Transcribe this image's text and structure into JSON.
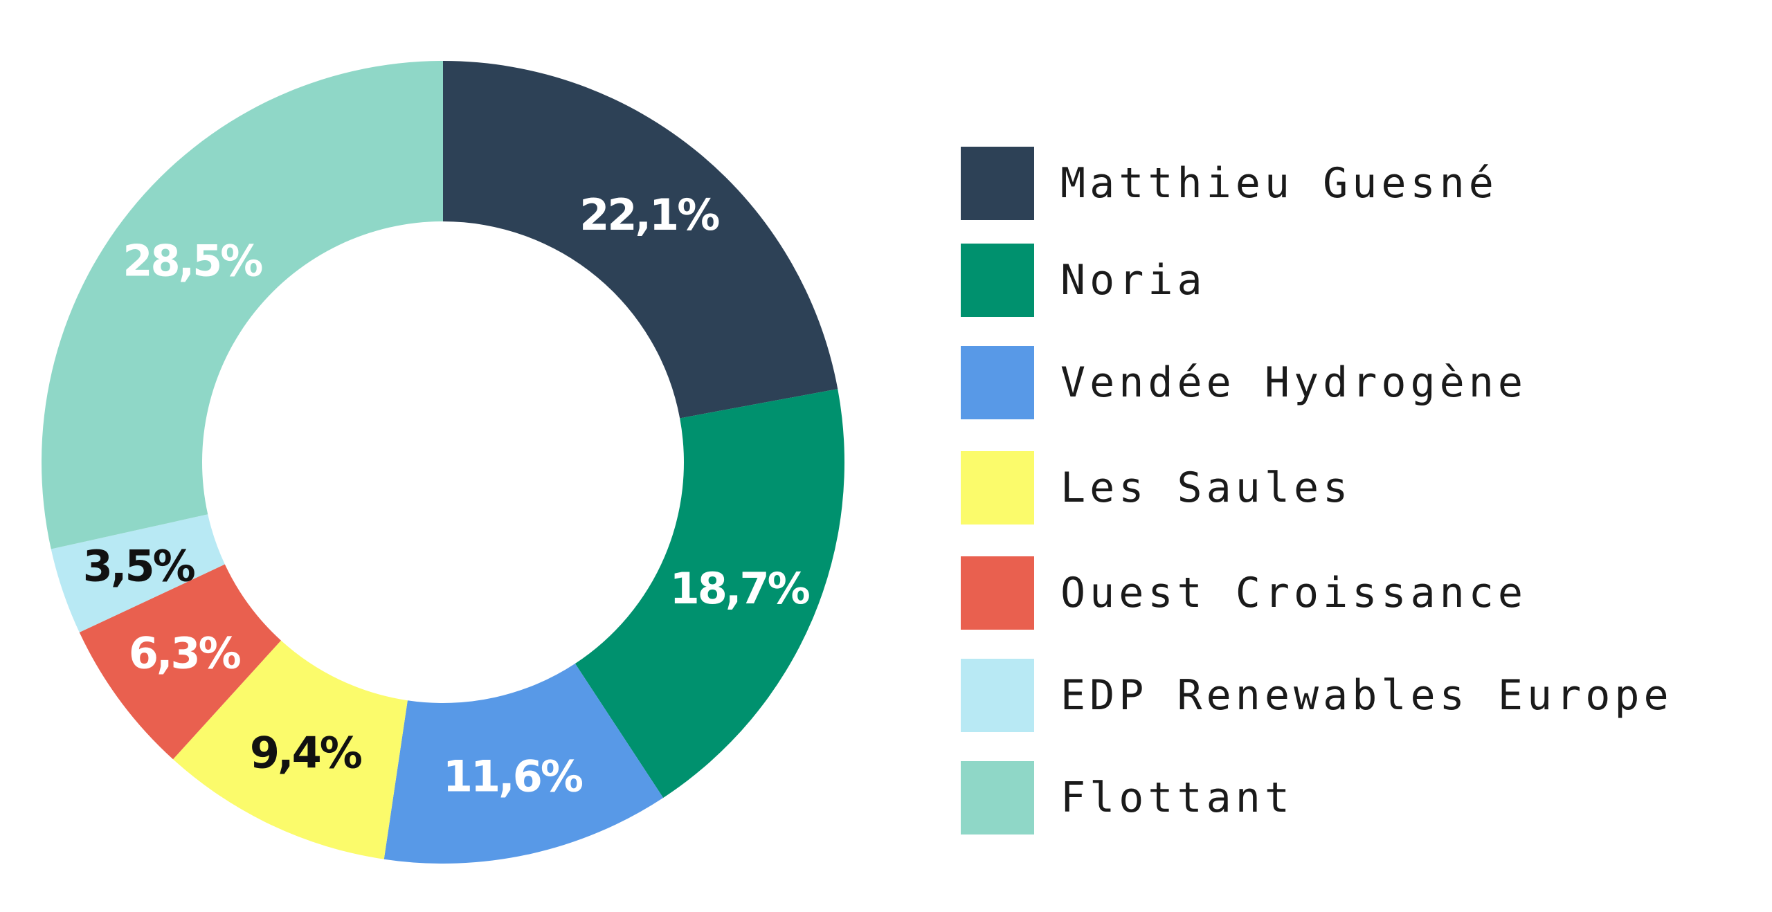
{
  "chart_data": {
    "type": "pie",
    "donut": true,
    "start_angle": "12 o'clock",
    "direction": "clockwise",
    "legend_position": "right",
    "value_unit": "%",
    "slices": [
      {
        "name": "Matthieu Guesné",
        "value": 22.1,
        "label": "22,1%",
        "color": "#2d4156",
        "label_color": "#ffffff"
      },
      {
        "name": "Noria",
        "value": 18.7,
        "label": "18,7%",
        "color": "#00916e",
        "label_color": "#ffffff"
      },
      {
        "name": "Vendée Hydrogène",
        "value": 11.6,
        "label": "11,6%",
        "color": "#5899e7",
        "label_color": "#ffffff"
      },
      {
        "name": "Les Saules",
        "value": 9.4,
        "label": "9,4%",
        "color": "#fbfb6b",
        "label_color": "#111111"
      },
      {
        "name": "Ouest Croissance",
        "value": 6.3,
        "label": "6,3%",
        "color": "#e9604f",
        "label_color": "#ffffff"
      },
      {
        "name": "EDP Renewables Europe",
        "value": 3.5,
        "label": "3,5%",
        "color": "#b8e9f4",
        "label_color": "#111111"
      },
      {
        "name": "Flottant",
        "value": 28.5,
        "label": "28,5%",
        "color": "#8fd7c7",
        "label_color": "#ffffff"
      }
    ]
  }
}
